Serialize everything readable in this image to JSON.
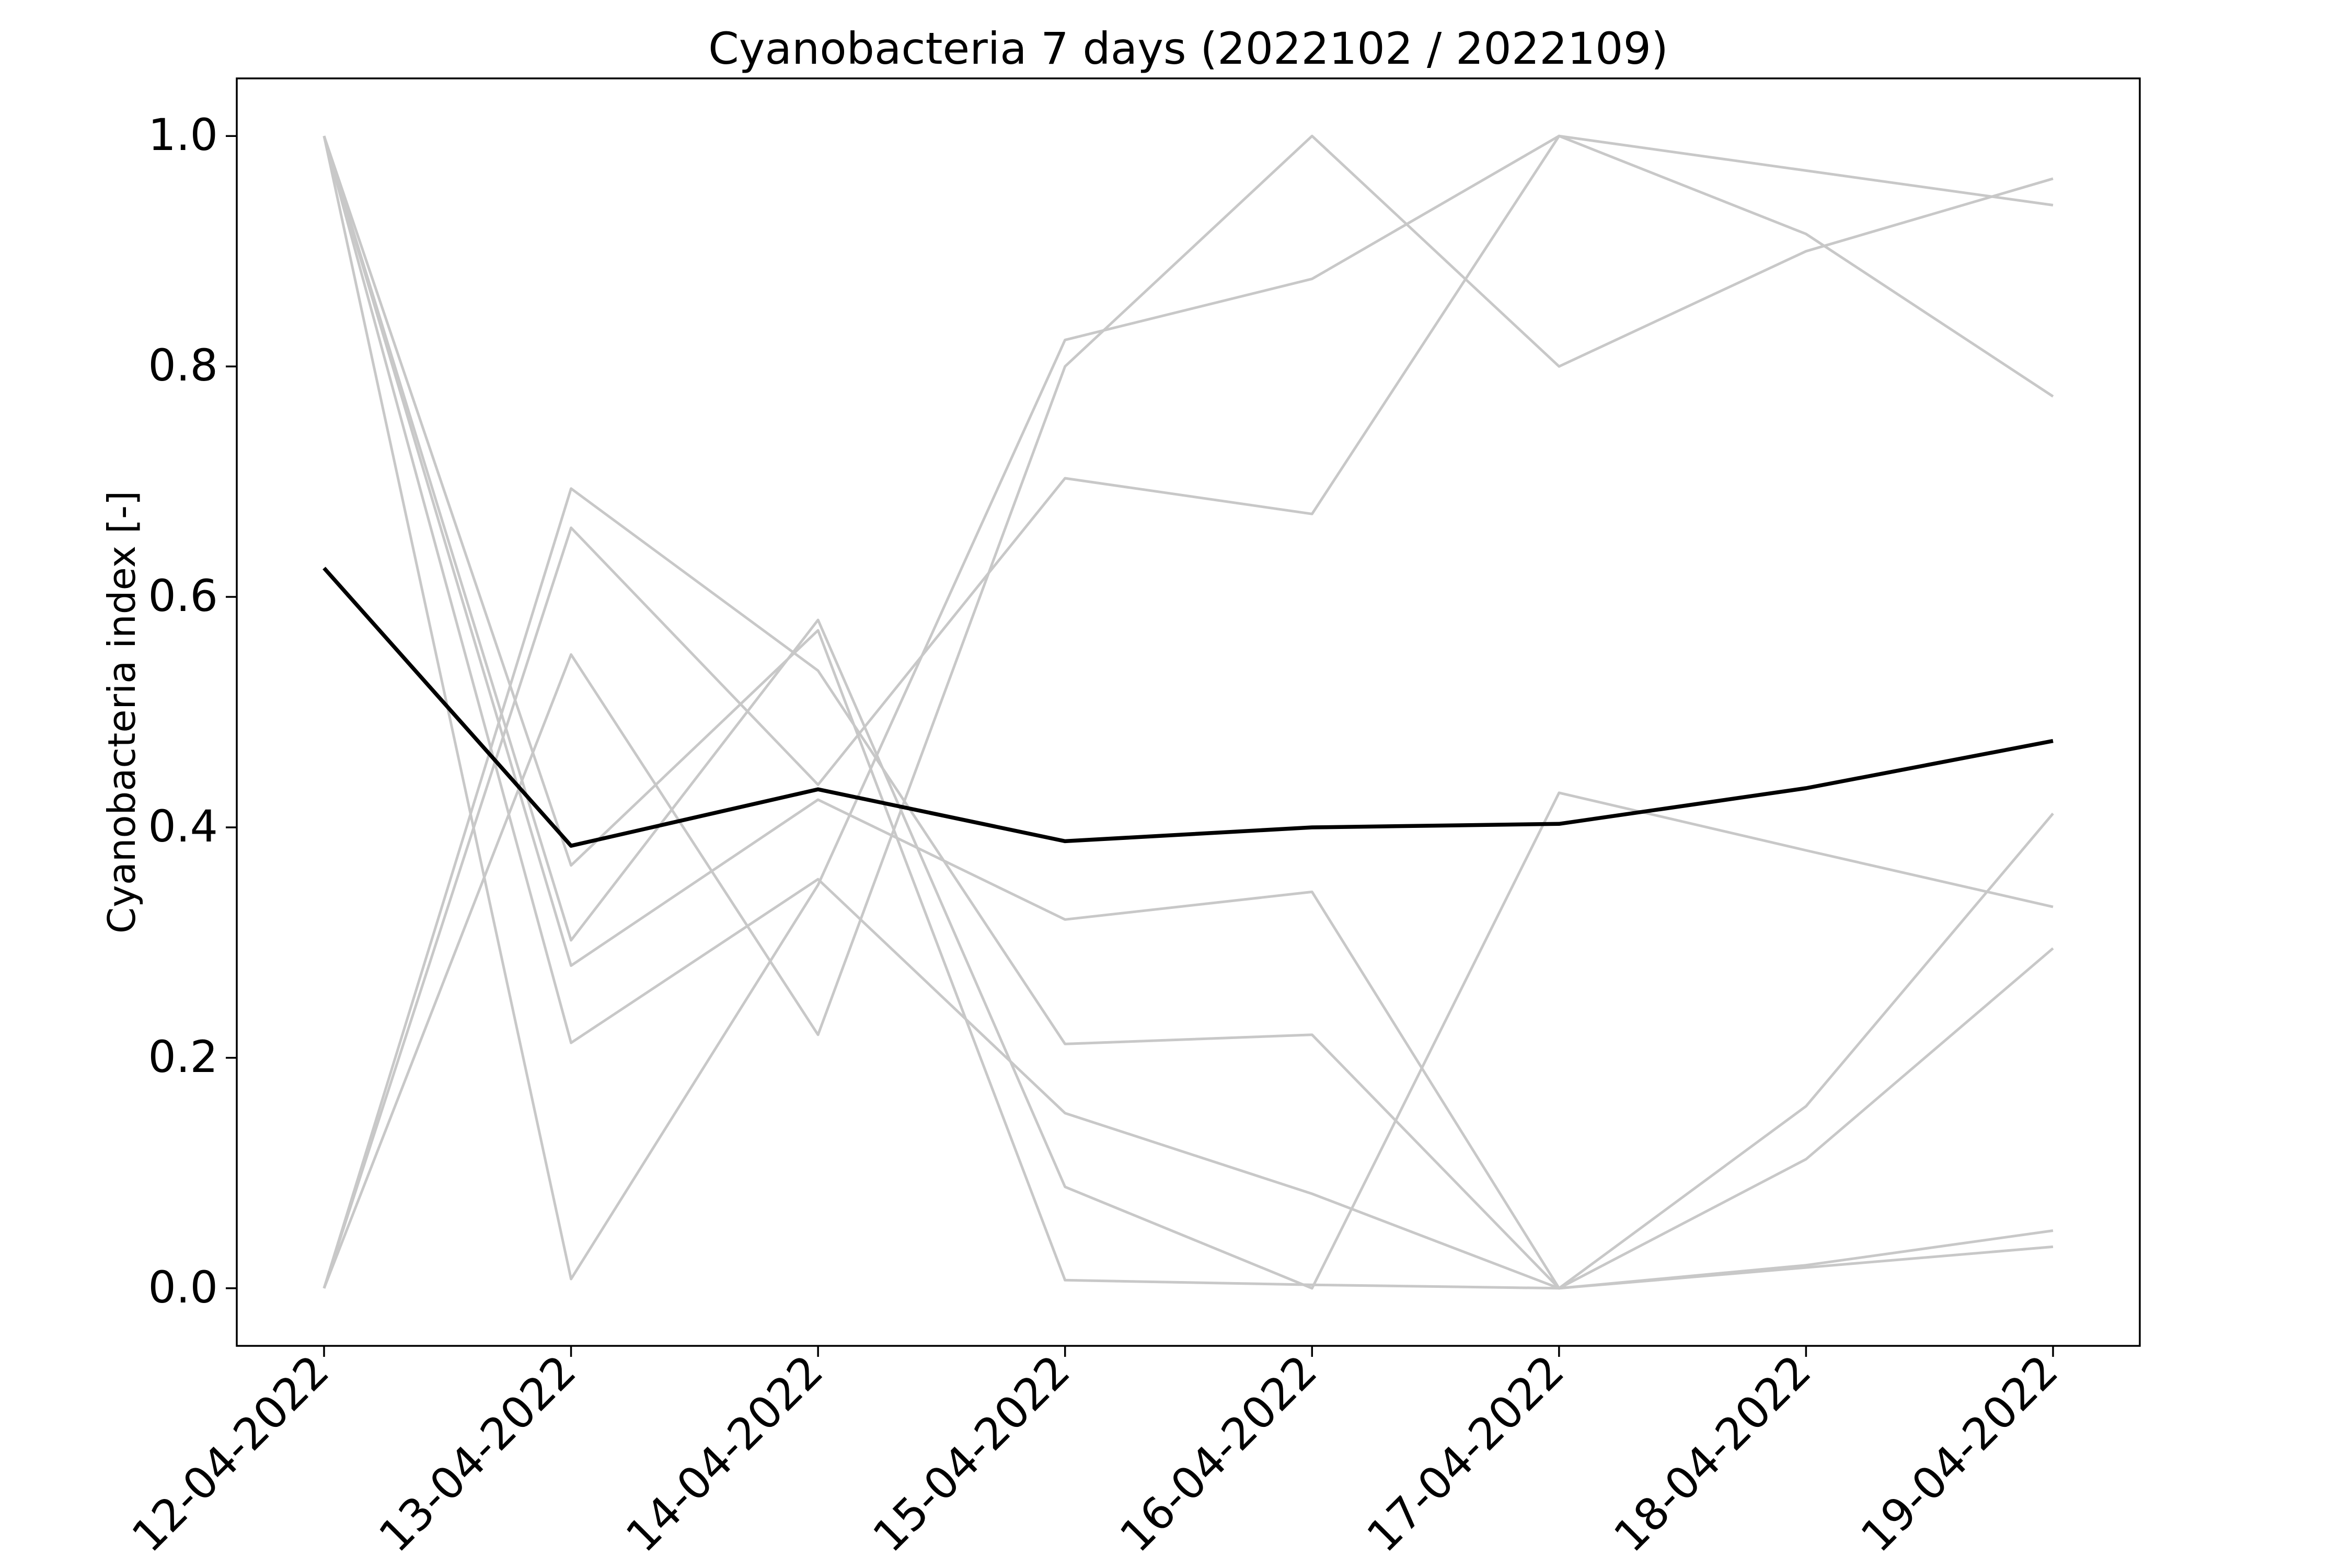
{
  "chart_data": {
    "type": "line",
    "title": "Cyanobacteria 7 days (2022102 / 2022109)",
    "xlabel": "",
    "ylabel": "Cyanobacteria index [-]",
    "categories": [
      "12-04-2022",
      "13-04-2022",
      "14-04-2022",
      "15-04-2022",
      "16-04-2022",
      "17-04-2022",
      "18-04-2022",
      "19-04-2022"
    ],
    "ylim": [
      -0.05,
      1.05
    ],
    "yticks": [
      0.0,
      0.2,
      0.4,
      0.6,
      0.8,
      1.0
    ],
    "ytick_labels": [
      "0.0",
      "0.2",
      "0.4",
      "0.6",
      "0.8",
      "1.0"
    ],
    "grid": false,
    "series": [
      {
        "role": "member",
        "color": "#c8c8c8",
        "values": [
          1.0,
          0.008,
          0.35,
          0.823,
          0.876,
          1.0,
          0.97,
          0.94
        ]
      },
      {
        "role": "member",
        "color": "#c8c8c8",
        "values": [
          0.0,
          0.55,
          0.22,
          0.8,
          1.0,
          0.8,
          0.9,
          0.963
        ]
      },
      {
        "role": "member",
        "color": "#c8c8c8",
        "values": [
          0.0,
          0.66,
          0.437,
          0.703,
          0.672,
          1.0,
          0.915,
          0.774
        ]
      },
      {
        "role": "member",
        "color": "#c8c8c8",
        "values": [
          1.0,
          0.28,
          0.424,
          0.32,
          0.344,
          0.0,
          0.112,
          0.295
        ]
      },
      {
        "role": "member",
        "color": "#c8c8c8",
        "values": [
          1.0,
          0.213,
          0.355,
          0.152,
          0.082,
          0.0,
          0.02,
          0.05
        ]
      },
      {
        "role": "member",
        "color": "#c8c8c8",
        "values": [
          0.0,
          0.694,
          0.536,
          0.212,
          0.22,
          0.0,
          0.158,
          0.412
        ]
      },
      {
        "role": "member",
        "color": "#c8c8c8",
        "values": [
          1.0,
          0.302,
          0.58,
          0.088,
          0.0,
          0.43,
          0.38,
          0.331
        ]
      },
      {
        "role": "member",
        "color": "#c8c8c8",
        "values": [
          1.0,
          0.367,
          0.571,
          0.007,
          0.003,
          0.0,
          0.018,
          0.036
        ]
      },
      {
        "role": "mean",
        "color": "#000000",
        "values": [
          0.625,
          0.384,
          0.433,
          0.388,
          0.4,
          0.403,
          0.434,
          0.475
        ]
      }
    ]
  }
}
